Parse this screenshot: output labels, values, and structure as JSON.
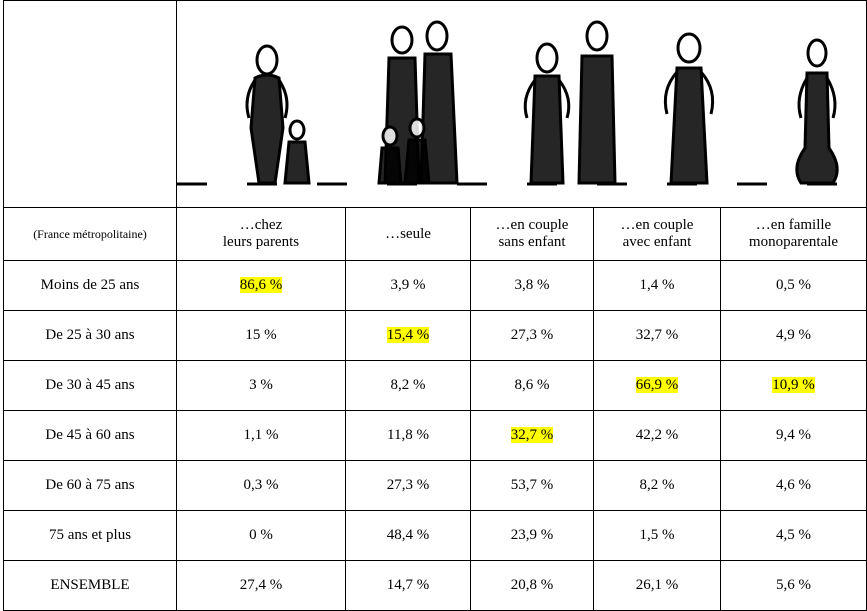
{
  "table": {
    "header": [
      "(France métropolitaine)",
      "…chez\nleurs parents",
      "…seule",
      "…en couple\nsans enfant",
      "…en couple\navec enfant",
      "…en famille\nmonoparentale"
    ],
    "rows": [
      [
        "Moins de 25 ans",
        {
          "text": "86,6 %",
          "highlight": true
        },
        "3,9 %",
        "3,8 %",
        "1,4 %",
        "0,5 %"
      ],
      [
        "De 25 à 30 ans",
        "15 %",
        {
          "text": "15,4 %",
          "highlight": true
        },
        "27,3 %",
        "32,7 %",
        "4,9 %"
      ],
      [
        "De 30 à 45 ans",
        "3 %",
        "8,2 %",
        "8,6 %",
        {
          "text": "66,9 %",
          "highlight": true
        },
        {
          "text": "10,9 %",
          "highlight": true
        }
      ],
      [
        "De 45 à 60 ans",
        "1,1 %",
        "11,8 %",
        {
          "text": "32,7 %",
          "highlight": true
        },
        "42,2 %",
        "9,4 %"
      ],
      [
        "De 60 à 75 ans",
        "0,3 %",
        "27,3 %",
        "53,7 %",
        "8,2 %",
        "4,6 %"
      ],
      [
        "75 ans et plus",
        "0 %",
        "48,4 %",
        "23,9 %",
        "1,5 %",
        "4,5 %"
      ],
      [
        "ENSEMBLE",
        "27,4 %",
        "14,7 %",
        "20,8 %",
        "26,1 %",
        "5,6 %"
      ]
    ]
  }
}
